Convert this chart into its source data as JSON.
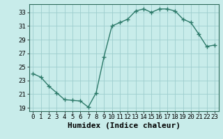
{
  "x": [
    0,
    1,
    2,
    3,
    4,
    5,
    6,
    7,
    8,
    9,
    10,
    11,
    12,
    13,
    14,
    15,
    16,
    17,
    18,
    19,
    20,
    21,
    22,
    23
  ],
  "y": [
    24.0,
    23.5,
    22.2,
    21.2,
    20.2,
    20.1,
    20.0,
    19.1,
    21.2,
    26.5,
    31.0,
    31.5,
    32.0,
    33.2,
    33.5,
    33.0,
    33.5,
    33.5,
    33.2,
    32.0,
    31.5,
    29.8,
    28.0,
    28.2
  ],
  "xlabel": "Humidex (Indice chaleur)",
  "xlim": [
    -0.5,
    23.5
  ],
  "ylim": [
    18.5,
    34.2
  ],
  "yticks": [
    19,
    21,
    23,
    25,
    27,
    29,
    31,
    33
  ],
  "xticks": [
    0,
    1,
    2,
    3,
    4,
    5,
    6,
    7,
    8,
    9,
    10,
    11,
    12,
    13,
    14,
    15,
    16,
    17,
    18,
    19,
    20,
    21,
    22,
    23
  ],
  "line_color": "#2d7a6a",
  "bg_color": "#c8ecea",
  "grid_color": "#9ecece",
  "axis_color": "#2d6a5a",
  "tick_fontsize": 6.5,
  "label_fontsize": 8
}
